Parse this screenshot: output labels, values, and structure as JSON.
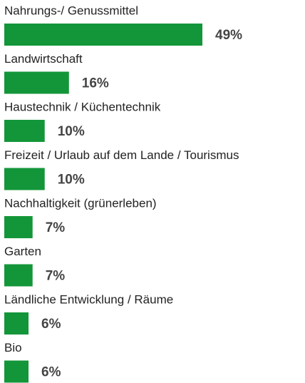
{
  "chart_data": {
    "type": "bar",
    "orientation": "horizontal",
    "categories": [
      "Nahrungs-/ Genussmittel",
      "Landwirtschaft",
      "Haustechnik / Küchentechnik",
      "Freizeit / Urlaub auf dem Lande / Tourismus",
      "Nachhaltigkeit (grünerleben)",
      "Garten",
      "Ländliche Entwicklung / Räume",
      "Bio"
    ],
    "values": [
      49,
      16,
      10,
      10,
      7,
      7,
      6,
      6
    ],
    "value_labels": [
      "49%",
      "16%",
      "10%",
      "10%",
      "7%",
      "7%",
      "6%",
      "6%"
    ],
    "color": "#139639"
  }
}
